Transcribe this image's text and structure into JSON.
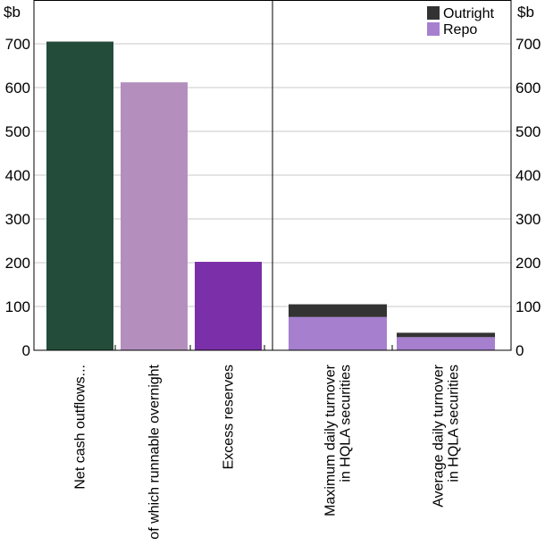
{
  "chart_data": {
    "type": "bar",
    "units": "$b",
    "ylim": [
      0,
      800
    ],
    "yticks": [
      0,
      100,
      200,
      300,
      400,
      500,
      600,
      700
    ],
    "grid": true,
    "legend": {
      "position": "top-right",
      "entries": [
        {
          "name": "Outright",
          "color": "#333333"
        },
        {
          "name": "Repo",
          "color": "#a67fcf"
        }
      ]
    },
    "panels": [
      {
        "name": "left-panel",
        "bars": [
          {
            "lines": [
              "Net cash outflows..."
            ],
            "value": 705,
            "color": "#234d3a"
          },
          {
            "lines": [
              "of which runnable overnight"
            ],
            "value": 612,
            "color": "#b48fbd"
          },
          {
            "lines": [
              "Excess reserves"
            ],
            "value": 202,
            "color": "#7b2fa8"
          }
        ]
      },
      {
        "name": "right-panel",
        "bars": [
          {
            "lines": [
              "Maximum daily turnover",
              "in HQLA securities"
            ],
            "stacked": [
              {
                "series": "Repo",
                "value": 76,
                "color": "#a67fcf"
              },
              {
                "series": "Outright",
                "value": 29,
                "color": "#333333"
              }
            ]
          },
          {
            "lines": [
              "Average daily turnover",
              "in HQLA securities"
            ],
            "stacked": [
              {
                "series": "Repo",
                "value": 30,
                "color": "#a67fcf"
              },
              {
                "series": "Outright",
                "value": 10,
                "color": "#333333"
              }
            ]
          }
        ]
      }
    ]
  }
}
